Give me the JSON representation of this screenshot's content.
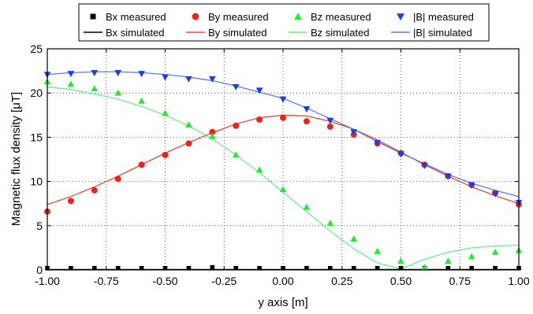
{
  "colors": {
    "Bx": "#000000",
    "By": "#e8251c",
    "Bz": "#27e83a",
    "B": "#1c3fe0",
    "By_line": "#e84a3a",
    "Bz_line": "#6fe88a",
    "B_line": "#5a7ae8"
  },
  "chart_data": {
    "type": "scatter",
    "xlabel": "y axis [m]",
    "ylabel": "Magnetic flux density [μT]",
    "xlim": [
      -1.0,
      1.0
    ],
    "ylim": [
      0,
      25
    ],
    "xticks": [
      "-1.00",
      "-0.75",
      "-0.50",
      "-0.25",
      "0.00",
      "0.25",
      "0.50",
      "0.75",
      "1.00"
    ],
    "yticks": [
      "0",
      "5",
      "10",
      "15",
      "20",
      "25"
    ],
    "grid": true,
    "legend_position": "top",
    "legend": [
      {
        "label": "Bx measured",
        "key": "Bx",
        "kind": "measured",
        "marker": "square"
      },
      {
        "label": "By measured",
        "key": "By",
        "kind": "measured",
        "marker": "circle"
      },
      {
        "label": "Bz measured",
        "key": "Bz",
        "kind": "measured",
        "marker": "triangle-up"
      },
      {
        "label": "|B| measured",
        "key": "B",
        "kind": "measured",
        "marker": "triangle-down"
      },
      {
        "label": "Bx simulated",
        "key": "Bx",
        "kind": "simulated"
      },
      {
        "label": "By simulated",
        "key": "By",
        "kind": "simulated"
      },
      {
        "label": "Bz simulated",
        "key": "Bz",
        "kind": "simulated"
      },
      {
        "label": "|B| simulated",
        "key": "B",
        "kind": "simulated"
      }
    ],
    "x": [
      -1.0,
      -0.9,
      -0.8,
      -0.7,
      -0.6,
      -0.5,
      -0.4,
      -0.3,
      -0.2,
      -0.1,
      0.0,
      0.1,
      0.2,
      0.3,
      0.4,
      0.5,
      0.6,
      0.7,
      0.8,
      0.9,
      1.0
    ],
    "series": [
      {
        "name": "Bx measured",
        "key": "Bx",
        "kind": "measured",
        "marker": "square",
        "values": [
          0.2,
          0.2,
          0.2,
          0.2,
          0.2,
          0.2,
          0.2,
          0.3,
          0.2,
          0.2,
          0.2,
          0.2,
          0.2,
          0.2,
          0.2,
          0.2,
          0.2,
          0.2,
          0.2,
          0.2,
          0.2
        ]
      },
      {
        "name": "By measured",
        "key": "By",
        "kind": "measured",
        "marker": "circle",
        "values": [
          6.6,
          7.8,
          9.0,
          10.3,
          11.9,
          13.0,
          14.3,
          15.6,
          16.3,
          17.0,
          17.2,
          16.8,
          16.2,
          15.3,
          14.3,
          13.2,
          11.9,
          10.6,
          9.6,
          8.7,
          7.4
        ]
      },
      {
        "name": "Bz measured",
        "key": "Bz",
        "kind": "measured",
        "marker": "triangle-up",
        "values": [
          21.3,
          21.0,
          20.5,
          20.0,
          19.1,
          17.7,
          16.4,
          15.1,
          13.0,
          11.3,
          9.1,
          7.1,
          5.3,
          3.5,
          2.1,
          1.0,
          0.3,
          1.0,
          1.5,
          2.0,
          2.2
        ]
      },
      {
        "name": "|B| measured",
        "key": "B",
        "kind": "measured",
        "marker": "triangle-down",
        "values": [
          22.1,
          22.2,
          22.3,
          22.3,
          22.2,
          21.8,
          21.6,
          21.6,
          20.7,
          20.3,
          19.3,
          18.2,
          16.9,
          15.6,
          14.4,
          13.1,
          11.8,
          10.6,
          9.6,
          8.6,
          7.6
        ]
      },
      {
        "name": "Bx simulated",
        "key": "Bx",
        "kind": "simulated",
        "values": [
          0.05,
          0.05,
          0.05,
          0.05,
          0.05,
          0.05,
          0.05,
          0.05,
          0.05,
          0.05,
          0.05,
          0.05,
          0.05,
          0.05,
          0.05,
          0.05,
          0.05,
          0.05,
          0.05,
          0.05,
          0.05
        ]
      },
      {
        "name": "By simulated",
        "key": "By",
        "kind": "simulated",
        "values": [
          7.4,
          8.3,
          9.4,
          10.6,
          11.9,
          13.2,
          14.4,
          15.5,
          16.5,
          17.2,
          17.5,
          17.4,
          16.8,
          15.9,
          14.7,
          13.3,
          11.9,
          10.6,
          9.4,
          8.4,
          7.5
        ]
      },
      {
        "name": "Bz simulated",
        "key": "Bz",
        "kind": "simulated",
        "values": [
          20.7,
          20.4,
          19.9,
          19.3,
          18.5,
          17.5,
          16.3,
          14.8,
          13.0,
          11.0,
          8.8,
          6.6,
          4.4,
          2.4,
          0.8,
          0.1,
          1.2,
          2.0,
          2.5,
          2.7,
          2.8
        ]
      },
      {
        "name": "|B| simulated",
        "key": "B",
        "kind": "simulated",
        "values": [
          22.1,
          22.3,
          22.4,
          22.4,
          22.3,
          22.1,
          21.8,
          21.4,
          20.8,
          20.1,
          19.4,
          18.3,
          17.1,
          15.9,
          14.5,
          13.2,
          12.0,
          10.8,
          9.8,
          9.0,
          8.3
        ]
      }
    ]
  }
}
